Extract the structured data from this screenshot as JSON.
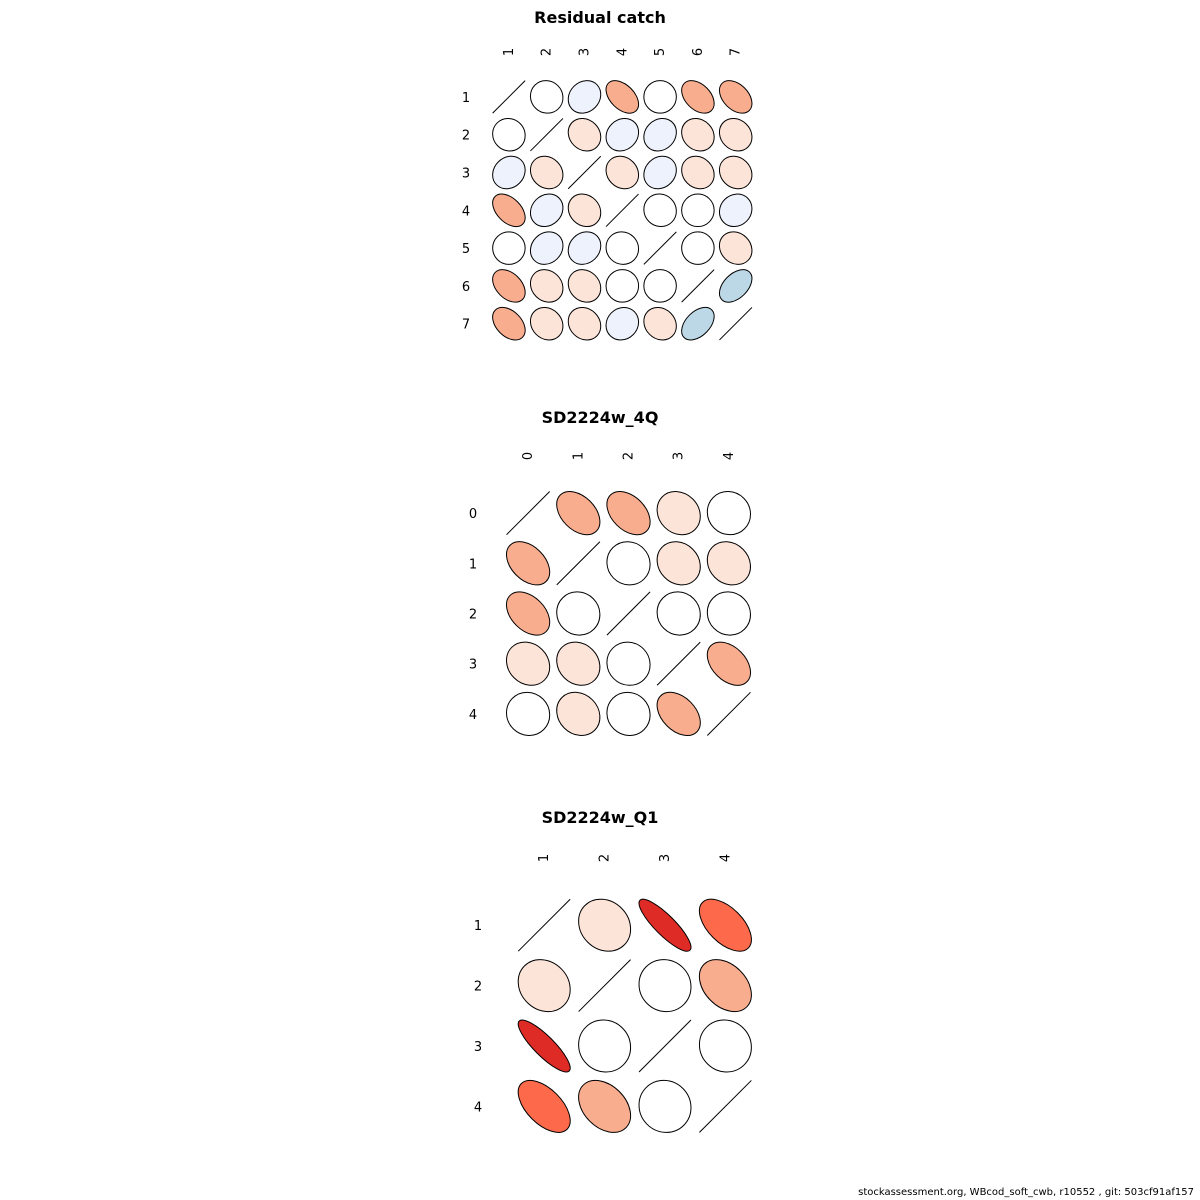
{
  "chart_data": [
    {
      "type": "correlation_ellipse_matrix",
      "title": "Residual catch",
      "labels": [
        "1",
        "2",
        "3",
        "4",
        "5",
        "6",
        "7"
      ],
      "matrix": [
        [
          1,
          0.05,
          -0.15,
          0.45,
          0.0,
          0.4,
          0.4
        ],
        [
          0.05,
          1,
          0.15,
          -0.15,
          -0.15,
          0.15,
          0.15
        ],
        [
          -0.15,
          0.15,
          1,
          0.15,
          -0.15,
          0.15,
          0.15
        ],
        [
          0.45,
          -0.15,
          0.15,
          1,
          0.05,
          0.0,
          -0.1
        ],
        [
          0.0,
          -0.15,
          -0.15,
          0.05,
          1,
          0.0,
          0.15
        ],
        [
          0.4,
          0.15,
          0.15,
          0.0,
          0.0,
          1,
          -0.45
        ],
        [
          0.4,
          0.15,
          0.15,
          -0.1,
          0.15,
          -0.45,
          1
        ]
      ]
    },
    {
      "type": "correlation_ellipse_matrix",
      "title": "SD2224w_4Q",
      "labels": [
        "0",
        "1",
        "2",
        "3",
        "4"
      ],
      "matrix": [
        [
          1,
          0.4,
          0.4,
          0.15,
          0.05
        ],
        [
          0.4,
          1,
          0.05,
          0.15,
          0.15
        ],
        [
          0.4,
          0.05,
          1,
          0.05,
          0.05
        ],
        [
          0.15,
          0.15,
          0.05,
          1,
          0.4
        ],
        [
          0.05,
          0.15,
          0.05,
          0.4,
          1
        ]
      ]
    },
    {
      "type": "correlation_ellipse_matrix",
      "title": "SD2224w_Q1",
      "labels": [
        "1",
        "2",
        "3",
        "4"
      ],
      "matrix": [
        [
          1,
          0.15,
          0.85,
          0.55
        ],
        [
          0.15,
          1,
          0.05,
          0.35
        ],
        [
          0.85,
          0.05,
          1,
          0.05
        ],
        [
          0.55,
          0.35,
          0.05,
          1
        ]
      ]
    }
  ],
  "footer": "stockassessment.org, WBcod_soft_cwb, r10552 , git: 503cf91af157"
}
